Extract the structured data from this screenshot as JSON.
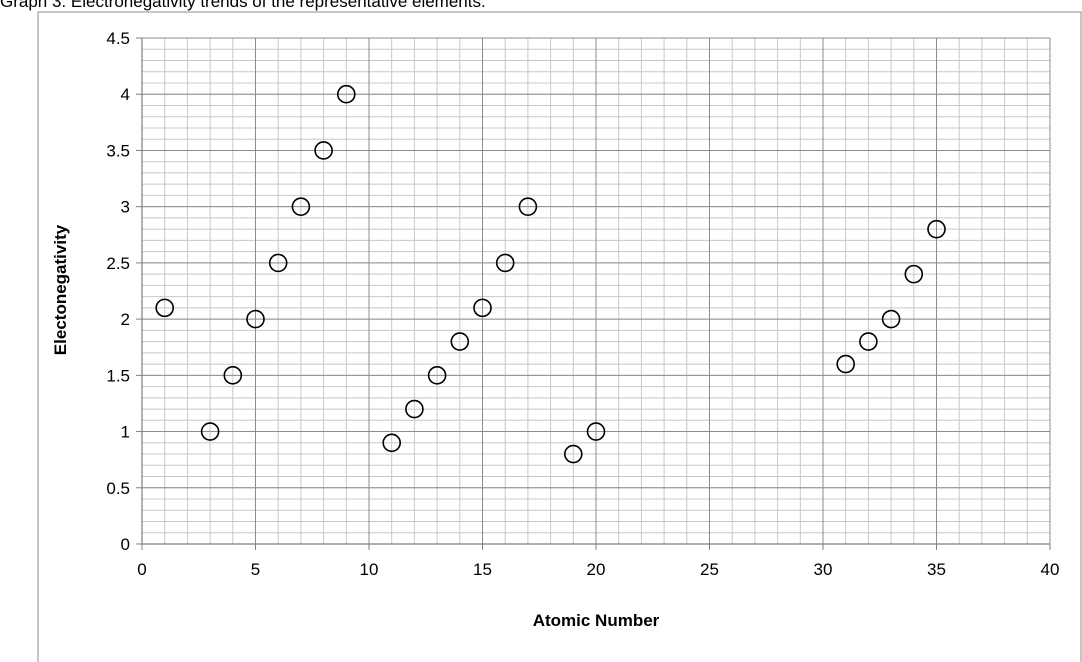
{
  "caption": "Graph 3. Electronegativity trends of the representative elements.",
  "chart_data": {
    "type": "scatter",
    "title": "",
    "xlabel": "Atomic Number",
    "ylabel": "Electonegativity",
    "xlim": [
      0,
      40
    ],
    "ylim": [
      0,
      4.5
    ],
    "x_ticks": [
      "0",
      "5",
      "10",
      "15",
      "20",
      "25",
      "30",
      "35",
      "40"
    ],
    "y_ticks": [
      "0",
      "0.5",
      "1",
      "1.5",
      "2",
      "2.5",
      "3",
      "3.5",
      "4",
      "4.5"
    ],
    "grid": true,
    "marker": "open-circle",
    "points": [
      {
        "x": 1,
        "y": 2.1
      },
      {
        "x": 3,
        "y": 1.0
      },
      {
        "x": 4,
        "y": 1.5
      },
      {
        "x": 5,
        "y": 2.0
      },
      {
        "x": 6,
        "y": 2.5
      },
      {
        "x": 7,
        "y": 3.0
      },
      {
        "x": 8,
        "y": 3.5
      },
      {
        "x": 9,
        "y": 4.0
      },
      {
        "x": 11,
        "y": 0.9
      },
      {
        "x": 12,
        "y": 1.2
      },
      {
        "x": 13,
        "y": 1.5
      },
      {
        "x": 14,
        "y": 1.8
      },
      {
        "x": 15,
        "y": 2.1
      },
      {
        "x": 16,
        "y": 2.5
      },
      {
        "x": 17,
        "y": 3.0
      },
      {
        "x": 19,
        "y": 0.8
      },
      {
        "x": 20,
        "y": 1.0
      },
      {
        "x": 31,
        "y": 1.6
      },
      {
        "x": 32,
        "y": 1.8
      },
      {
        "x": 33,
        "y": 2.0
      },
      {
        "x": 34,
        "y": 2.4
      },
      {
        "x": 35,
        "y": 2.8
      }
    ]
  }
}
